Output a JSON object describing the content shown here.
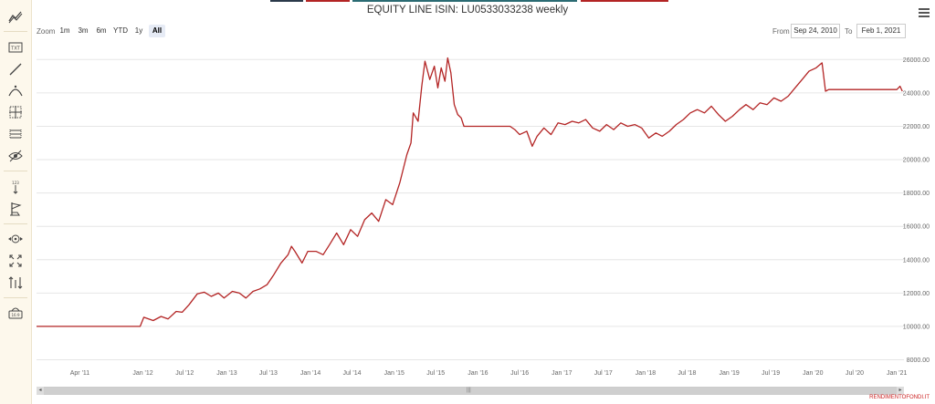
{
  "title": "EQUITY LINE ISIN: LU0533033238 weekly",
  "zoom": {
    "label": "Zoom",
    "buttons": [
      "1m",
      "3m",
      "6m",
      "YTD",
      "1y",
      "All"
    ],
    "active": "All"
  },
  "range": {
    "from_label": "From",
    "from_value": "Sep 24, 2010",
    "to_label": "To",
    "to_value": "Feb 1, 2021"
  },
  "credit": "RENDIMENTOFONDI.IT",
  "toolbar_icons": [
    "indicators-icon",
    "text-annotation-icon",
    "line-drawing-icon",
    "curve-drawing-icon",
    "crosshair-icon",
    "measure-icon",
    "visibility-icon",
    "vertical-label-icon",
    "flag-icon",
    "zoom-pan-icon",
    "fullscreen-icon",
    "price-indicator-icon",
    "save-chart-icon"
  ],
  "colors": {
    "line": "#b32424",
    "grid": "#e6e6e6"
  },
  "chart_data": {
    "type": "line",
    "title": "EQUITY LINE ISIN: LU0533033238 weekly",
    "x_ticks": [
      "Apr '11",
      "Jan '12",
      "Jul '12",
      "Jan '13",
      "Jul '13",
      "Jan '14",
      "Jul '14",
      "Jan '15",
      "Jul '15",
      "Jan '16",
      "Jul '16",
      "Jan '17",
      "Jul '17",
      "Jan '18",
      "Jul '18",
      "Jan '19",
      "Jul '19",
      "Jan '20",
      "Jul '20",
      "Jan '21"
    ],
    "y_ticks": [
      8000,
      10000,
      12000,
      14000,
      16000,
      18000,
      20000,
      22000,
      24000,
      26000
    ],
    "y_tick_labels": [
      "8000.00",
      "10000.00",
      "12000.00",
      "14000.00",
      "16000.00",
      "18000.00",
      "20000.00",
      "22000.00",
      "24000.00",
      "26000.00"
    ],
    "xlim": [
      "2010-09-24",
      "2021-02-01"
    ],
    "ylim": [
      7700,
      27000
    ],
    "grid": true,
    "series": [
      {
        "points": [
          [
            "2010-09-24",
            10000
          ],
          [
            "2011-06-01",
            10000
          ],
          [
            "2011-12-01",
            10000
          ],
          [
            "2011-12-20",
            10000
          ],
          [
            "2012-01-05",
            10550
          ],
          [
            "2012-02-15",
            10350
          ],
          [
            "2012-03-20",
            10600
          ],
          [
            "2012-04-20",
            10450
          ],
          [
            "2012-05-25",
            10900
          ],
          [
            "2012-06-20",
            10850
          ],
          [
            "2012-07-20",
            11300
          ],
          [
            "2012-08-25",
            11950
          ],
          [
            "2012-09-25",
            12050
          ],
          [
            "2012-10-25",
            11800
          ],
          [
            "2012-11-25",
            12000
          ],
          [
            "2012-12-20",
            11700
          ],
          [
            "2013-01-25",
            12100
          ],
          [
            "2013-02-25",
            12000
          ],
          [
            "2013-03-25",
            11700
          ],
          [
            "2013-04-25",
            12100
          ],
          [
            "2013-05-25",
            12250
          ],
          [
            "2013-06-25",
            12500
          ],
          [
            "2013-07-25",
            13100
          ],
          [
            "2013-08-25",
            13800
          ],
          [
            "2013-09-25",
            14300
          ],
          [
            "2013-10-10",
            14800
          ],
          [
            "2013-10-25",
            14500
          ],
          [
            "2013-11-25",
            13800
          ],
          [
            "2013-12-20",
            14500
          ],
          [
            "2014-01-25",
            14500
          ],
          [
            "2014-02-25",
            14300
          ],
          [
            "2014-03-25",
            14900
          ],
          [
            "2014-04-25",
            15600
          ],
          [
            "2014-05-25",
            14900
          ],
          [
            "2014-06-25",
            15800
          ],
          [
            "2014-07-25",
            15400
          ],
          [
            "2014-08-25",
            16400
          ],
          [
            "2014-09-25",
            16800
          ],
          [
            "2014-10-25",
            16300
          ],
          [
            "2014-11-25",
            17600
          ],
          [
            "2014-12-25",
            17300
          ],
          [
            "2015-01-25",
            18600
          ],
          [
            "2015-02-25",
            20300
          ],
          [
            "2015-03-15",
            21000
          ],
          [
            "2015-03-25",
            22800
          ],
          [
            "2015-04-15",
            22300
          ],
          [
            "2015-05-01",
            24400
          ],
          [
            "2015-05-15",
            25900
          ],
          [
            "2015-06-05",
            24800
          ],
          [
            "2015-06-25",
            25600
          ],
          [
            "2015-07-10",
            24300
          ],
          [
            "2015-07-25",
            25500
          ],
          [
            "2015-08-10",
            24700
          ],
          [
            "2015-08-22",
            26100
          ],
          [
            "2015-09-05",
            25200
          ],
          [
            "2015-09-20",
            23300
          ],
          [
            "2015-10-05",
            22700
          ],
          [
            "2015-10-20",
            22500
          ],
          [
            "2015-11-01",
            22000
          ],
          [
            "2016-05-20",
            22000
          ],
          [
            "2016-06-10",
            21800
          ],
          [
            "2016-07-01",
            21500
          ],
          [
            "2016-08-01",
            21700
          ],
          [
            "2016-08-25",
            20800
          ],
          [
            "2016-09-15",
            21400
          ],
          [
            "2016-10-15",
            21900
          ],
          [
            "2016-11-15",
            21500
          ],
          [
            "2016-12-15",
            22200
          ],
          [
            "2017-01-15",
            22100
          ],
          [
            "2017-02-15",
            22300
          ],
          [
            "2017-03-15",
            22200
          ],
          [
            "2017-04-15",
            22400
          ],
          [
            "2017-05-15",
            21900
          ],
          [
            "2017-06-15",
            21700
          ],
          [
            "2017-07-15",
            22100
          ],
          [
            "2017-08-15",
            21800
          ],
          [
            "2017-09-15",
            22200
          ],
          [
            "2017-10-15",
            22000
          ],
          [
            "2017-11-15",
            22100
          ],
          [
            "2017-12-15",
            21900
          ],
          [
            "2018-01-15",
            21300
          ],
          [
            "2018-02-15",
            21600
          ],
          [
            "2018-03-15",
            21400
          ],
          [
            "2018-04-15",
            21700
          ],
          [
            "2018-05-15",
            22100
          ],
          [
            "2018-06-15",
            22400
          ],
          [
            "2018-07-15",
            22800
          ],
          [
            "2018-08-15",
            23000
          ],
          [
            "2018-09-15",
            22800
          ],
          [
            "2018-10-15",
            23200
          ],
          [
            "2018-11-15",
            22700
          ],
          [
            "2018-12-15",
            22300
          ],
          [
            "2019-01-15",
            22600
          ],
          [
            "2019-02-15",
            23000
          ],
          [
            "2019-03-15",
            23300
          ],
          [
            "2019-04-15",
            23000
          ],
          [
            "2019-05-15",
            23400
          ],
          [
            "2019-06-15",
            23300
          ],
          [
            "2019-07-15",
            23700
          ],
          [
            "2019-08-15",
            23500
          ],
          [
            "2019-09-15",
            23800
          ],
          [
            "2019-10-15",
            24300
          ],
          [
            "2019-11-15",
            24800
          ],
          [
            "2019-12-15",
            25300
          ],
          [
            "2020-01-15",
            25500
          ],
          [
            "2020-02-10",
            25800
          ],
          [
            "2020-02-25",
            24100
          ],
          [
            "2020-03-10",
            24200
          ],
          [
            "2020-06-01",
            24200
          ],
          [
            "2020-12-01",
            24200
          ],
          [
            "2021-01-01",
            24200
          ],
          [
            "2021-01-15",
            24400
          ],
          [
            "2021-01-25",
            24100
          ]
        ]
      }
    ]
  }
}
